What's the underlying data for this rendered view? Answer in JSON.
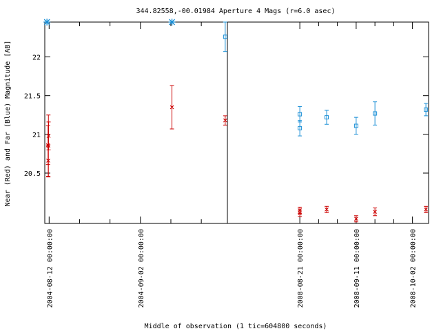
{
  "chart_data": {
    "type": "scatter",
    "title": "344.82558,-00.01984   Aperture 4 Mags (r=6.0 asec)",
    "xlabel": "Middle of observation (1 tic=604800 seconds)",
    "ylabel": "Near (Red) and Far (Blue) Magnitude [AB]",
    "y_inverted": true,
    "ylim": [
      22.45,
      19.85
    ],
    "y_ticks": [
      {
        "value": 20.5,
        "label": "20.5"
      },
      {
        "value": 21,
        "label": "21"
      },
      {
        "value": 21.5,
        "label": "21.5"
      },
      {
        "value": 22,
        "label": "22"
      }
    ],
    "panels": [
      {
        "x_range": [
          "2004-08-11",
          "2004-09-22"
        ],
        "tick_labels": [
          {
            "date": "2004-08-12",
            "label": "2004-08-12 00:00:00"
          },
          {
            "date": "2004-09-02",
            "label": "2004-09-02 00:00:00"
          }
        ],
        "minor_tick_dates": [
          "2004-08-19",
          "2004-08-26",
          "2004-09-09",
          "2004-09-16"
        ]
      },
      {
        "x_range": [
          "2008-07-25",
          "2008-10-08"
        ],
        "tick_labels": [
          {
            "date": "2008-08-21",
            "label": "2008-08-21 00:00:00"
          },
          {
            "date": "2008-09-11",
            "label": "2008-09-11 00:00:00"
          },
          {
            "date": "2008-10-02",
            "label": "2008-10-02 00:00:00"
          }
        ],
        "minor_tick_dates": [
          "2008-08-28",
          "2008-09-04",
          "2008-09-18",
          "2008-09-25"
        ]
      }
    ],
    "series": [
      {
        "color": "#cc0000",
        "marker": "cross",
        "points": [
          {
            "x": "2004-08-11T18:00",
            "y": 20.86,
            "err": 0.25
          },
          {
            "x": "2004-08-11T21:00",
            "y": 20.98,
            "err": 0.18
          },
          {
            "x": "2004-08-11T20:00",
            "y": 20.85,
            "err": 0.4
          },
          {
            "x": "2004-08-11T19:00",
            "y": 20.66,
            "err": 0.2
          },
          {
            "x": "2004-09-09T06:00",
            "y": 21.35,
            "err": 0.28
          },
          {
            "x": "2004-09-21T12:00",
            "y": 21.18,
            "err": 0.06
          },
          {
            "x": "2008-08-21T00:00",
            "y": 19.98,
            "err": 0.04
          },
          {
            "x": "2008-08-21T00:00",
            "y": 20.02,
            "err": 0.04
          },
          {
            "x": "2008-08-31T00:00",
            "y": 20.03,
            "err": 0.04
          },
          {
            "x": "2008-09-11T00:00",
            "y": 19.91,
            "err": 0.04
          },
          {
            "x": "2008-09-18T00:00",
            "y": 20.0,
            "err": 0.05
          },
          {
            "x": "2008-10-07T00:00",
            "y": 20.03,
            "err": 0.04
          }
        ]
      },
      {
        "color": "#1a8fd6",
        "marker": "square",
        "points": [
          {
            "x": "2004-09-21T12:00",
            "y": 22.26,
            "err": 0.19
          },
          {
            "x": "2008-08-21T00:00",
            "y": 21.08,
            "err": 0.1
          },
          {
            "x": "2008-08-21T00:00",
            "y": 21.26,
            "err": 0.1
          },
          {
            "x": "2008-08-31T00:00",
            "y": 21.22,
            "err": 0.09
          },
          {
            "x": "2008-09-11T00:00",
            "y": 21.11,
            "err": 0.11
          },
          {
            "x": "2008-09-18T00:00",
            "y": 21.27,
            "err": 0.15
          },
          {
            "x": "2008-10-07T00:00",
            "y": 21.32,
            "err": 0.08
          }
        ],
        "limits": [
          {
            "x": "2004-08-11T12:00",
            "y": 22.45
          },
          {
            "x": "2004-09-09T06:00",
            "y": 22.45
          }
        ]
      }
    ]
  }
}
